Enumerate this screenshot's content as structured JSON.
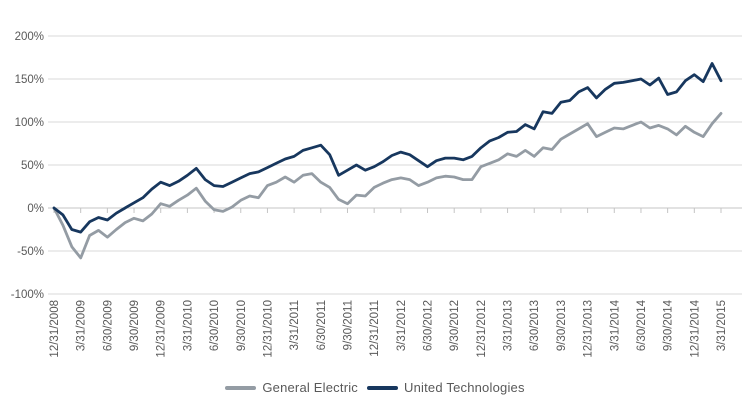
{
  "chart_data": {
    "type": "line",
    "title": "",
    "xlabel": "",
    "ylabel": "",
    "value_format": "percent",
    "grid": true,
    "legend_position": "bottom",
    "y_axis": {
      "range": [
        -100,
        200
      ],
      "tick_labels": [
        "200%",
        "150%",
        "100%",
        "50%",
        "0%",
        "-50%",
        "-100%"
      ],
      "tick_values": [
        200,
        150,
        100,
        50,
        0,
        -50,
        -100
      ]
    },
    "x_axis": {
      "tick_labels": [
        "12/31/2008",
        "3/31/2009",
        "6/30/2009",
        "9/30/2009",
        "12/31/2009",
        "3/31/2010",
        "6/30/2010",
        "9/30/2010",
        "12/31/2010",
        "3/31/2011",
        "6/30/2011",
        "9/30/2011",
        "12/31/2011",
        "3/31/2012",
        "6/30/2012",
        "9/30/2012",
        "12/31/2012",
        "3/31/2013",
        "6/30/2013",
        "9/30/2013",
        "12/31/2013",
        "3/31/2014",
        "6/30/2014",
        "9/30/2014",
        "12/31/2014",
        "3/31/2015"
      ]
    },
    "sampling": "monthly cumulative return (%), Dec 2008 through Mar 2015, estimated from plot",
    "series": [
      {
        "name": "General Electric",
        "color": "#94global9CA4",
        "values": [
          0,
          -20,
          -45,
          -58,
          -32,
          -26,
          -34,
          -25,
          -17,
          -12,
          -15,
          -7,
          5,
          2,
          9,
          15,
          23,
          8,
          -2,
          -4,
          1,
          9,
          14,
          12,
          26,
          30,
          36,
          30,
          38,
          40,
          30,
          24,
          10,
          5,
          15,
          14,
          24,
          29,
          33,
          35,
          33,
          26,
          30,
          35,
          37,
          36,
          33,
          33,
          48,
          52,
          56,
          63,
          60,
          67,
          60,
          70,
          68,
          80,
          86,
          92,
          98,
          83,
          88,
          93,
          92,
          96,
          100,
          93,
          96,
          92,
          85,
          95,
          88,
          83,
          98,
          110
        ]
      },
      {
        "name": "United Technologies",
        "color": "#17375E",
        "values": [
          0,
          -8,
          -25,
          -28,
          -16,
          -11,
          -14,
          -6,
          0,
          6,
          12,
          22,
          30,
          26,
          31,
          38,
          46,
          33,
          26,
          25,
          30,
          35,
          40,
          42,
          47,
          52,
          57,
          60,
          67,
          70,
          73,
          62,
          38,
          44,
          50,
          44,
          48,
          54,
          61,
          65,
          62,
          55,
          48,
          55,
          58,
          58,
          56,
          60,
          70,
          78,
          82,
          88,
          89,
          97,
          92,
          112,
          110,
          123,
          125,
          135,
          140,
          128,
          138,
          145,
          146,
          148,
          150,
          143,
          151,
          132,
          135,
          148,
          155,
          147,
          168,
          148
        ]
      }
    ]
  },
  "legend": {
    "entries": [
      "General Electric",
      "United Technologies"
    ]
  },
  "colors": {
    "series_ge": "#949CA4",
    "series_utx": "#17375E",
    "gridline": "#dadada",
    "axis_line": "#c4c4c4",
    "tick_text": "#595959"
  }
}
